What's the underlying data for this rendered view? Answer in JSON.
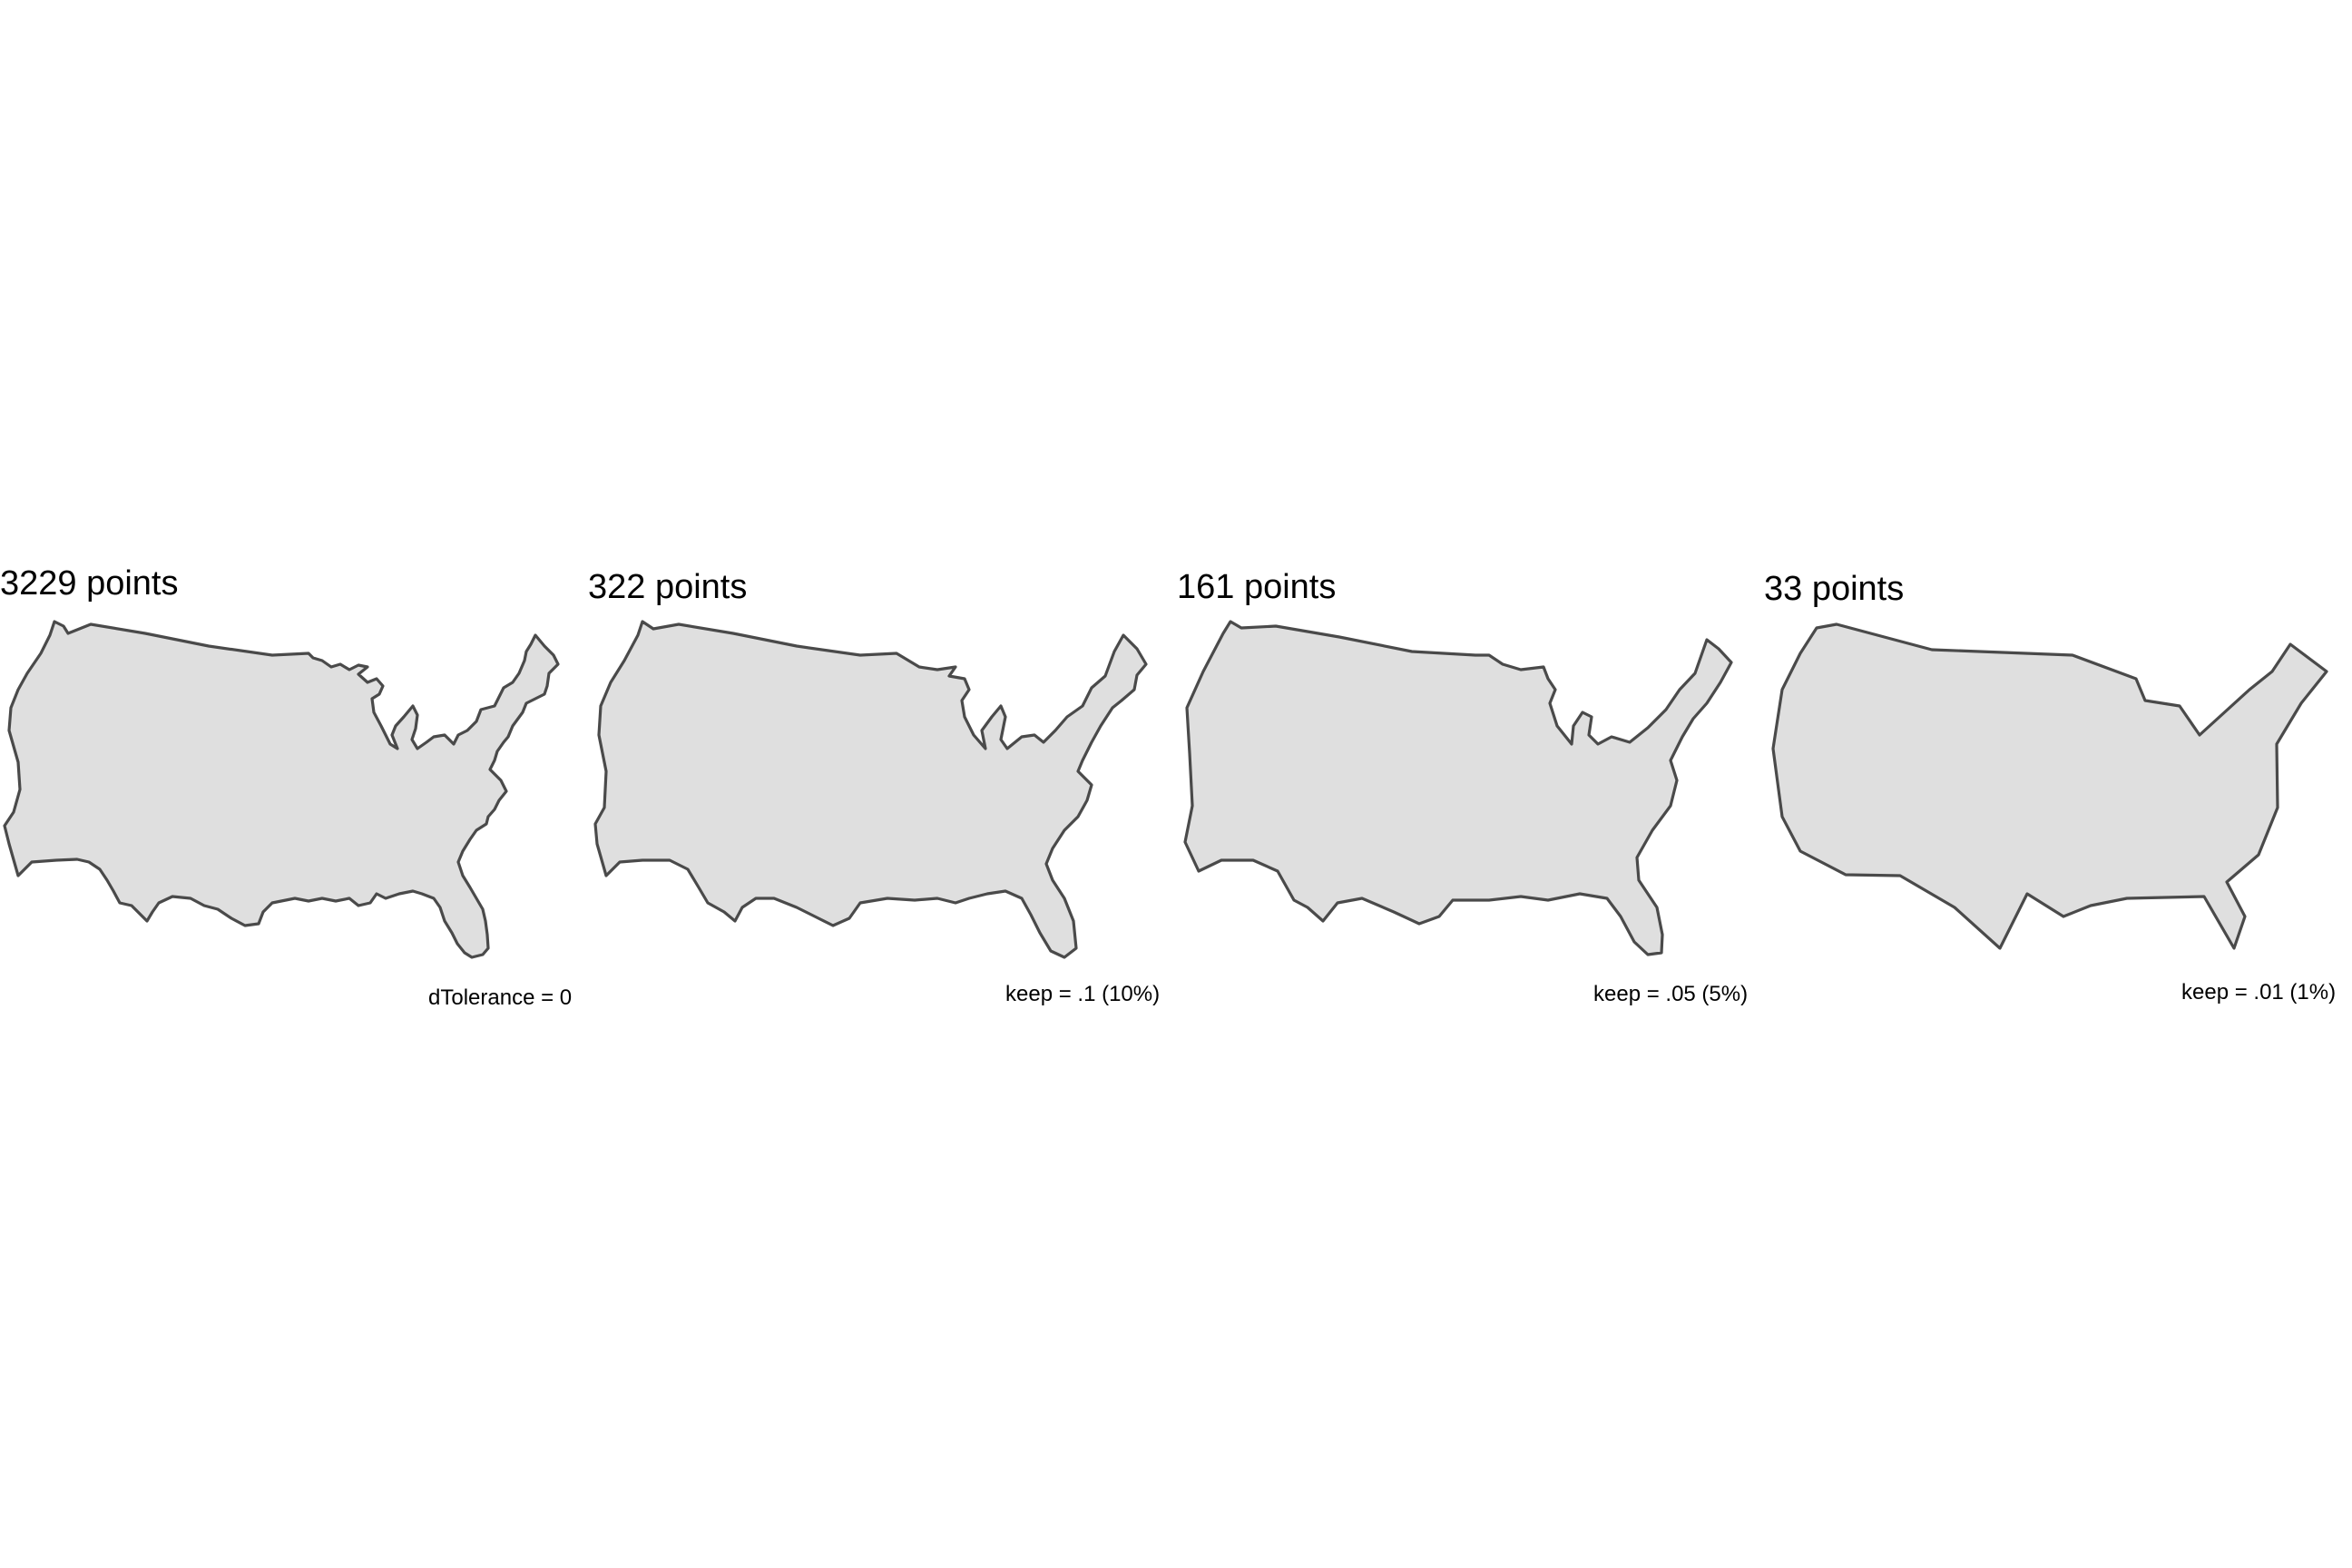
{
  "panels": [
    {
      "title": "3229 points",
      "caption": "dTolerance = 0"
    },
    {
      "title": "322 points",
      "caption": "keep = .1 (10%)"
    },
    {
      "title": "161 points",
      "caption": "keep = .05 (5%)"
    },
    {
      "title": "33 points",
      "caption": "keep = .01 (1%)"
    }
  ],
  "colors": {
    "land_fill": "#dfdfdf",
    "outline": "#4a4a4a",
    "background": "#ffffff"
  }
}
